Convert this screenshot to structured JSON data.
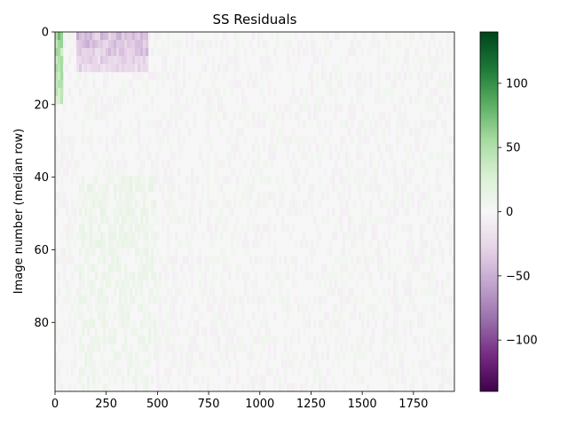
{
  "chart_data": {
    "type": "heatmap",
    "title": "SS Residuals",
    "xlabel": "",
    "ylabel": "Image number (median row)",
    "x_range": [
      0,
      1950
    ],
    "y_range": [
      0,
      99
    ],
    "y_inverted": true,
    "xticks": [
      0,
      250,
      500,
      750,
      1000,
      1250,
      1500,
      1750
    ],
    "yticks": [
      0,
      20,
      40,
      60,
      80
    ],
    "colorbar": {
      "colormap": "PRGn",
      "range": [
        -140,
        140
      ],
      "ticks": [
        100,
        50,
        0,
        -50,
        -100
      ],
      "tick_labels": [
        "100",
        "50",
        "0",
        "−50",
        "−100"
      ],
      "colors": [
        "#40004b",
        "#762a83",
        "#9970ab",
        "#c2a5cf",
        "#e7d4e8",
        "#f7f7f7",
        "#d9f0d3",
        "#a6dba0",
        "#5aae61",
        "#1b7837",
        "#00441b"
      ]
    },
    "features": [
      {
        "description": "bright green band at left edge",
        "x_range": [
          0,
          35
        ],
        "y_range": [
          0,
          20
        ],
        "value": 60
      },
      {
        "description": "purple depression near top",
        "x_range": [
          100,
          450
        ],
        "y_range": [
          0,
          12
        ],
        "value": -40
      },
      {
        "description": "faint green columns",
        "x_range": [
          120,
          500
        ],
        "y_range": [
          40,
          99
        ],
        "value": 8
      }
    ]
  }
}
